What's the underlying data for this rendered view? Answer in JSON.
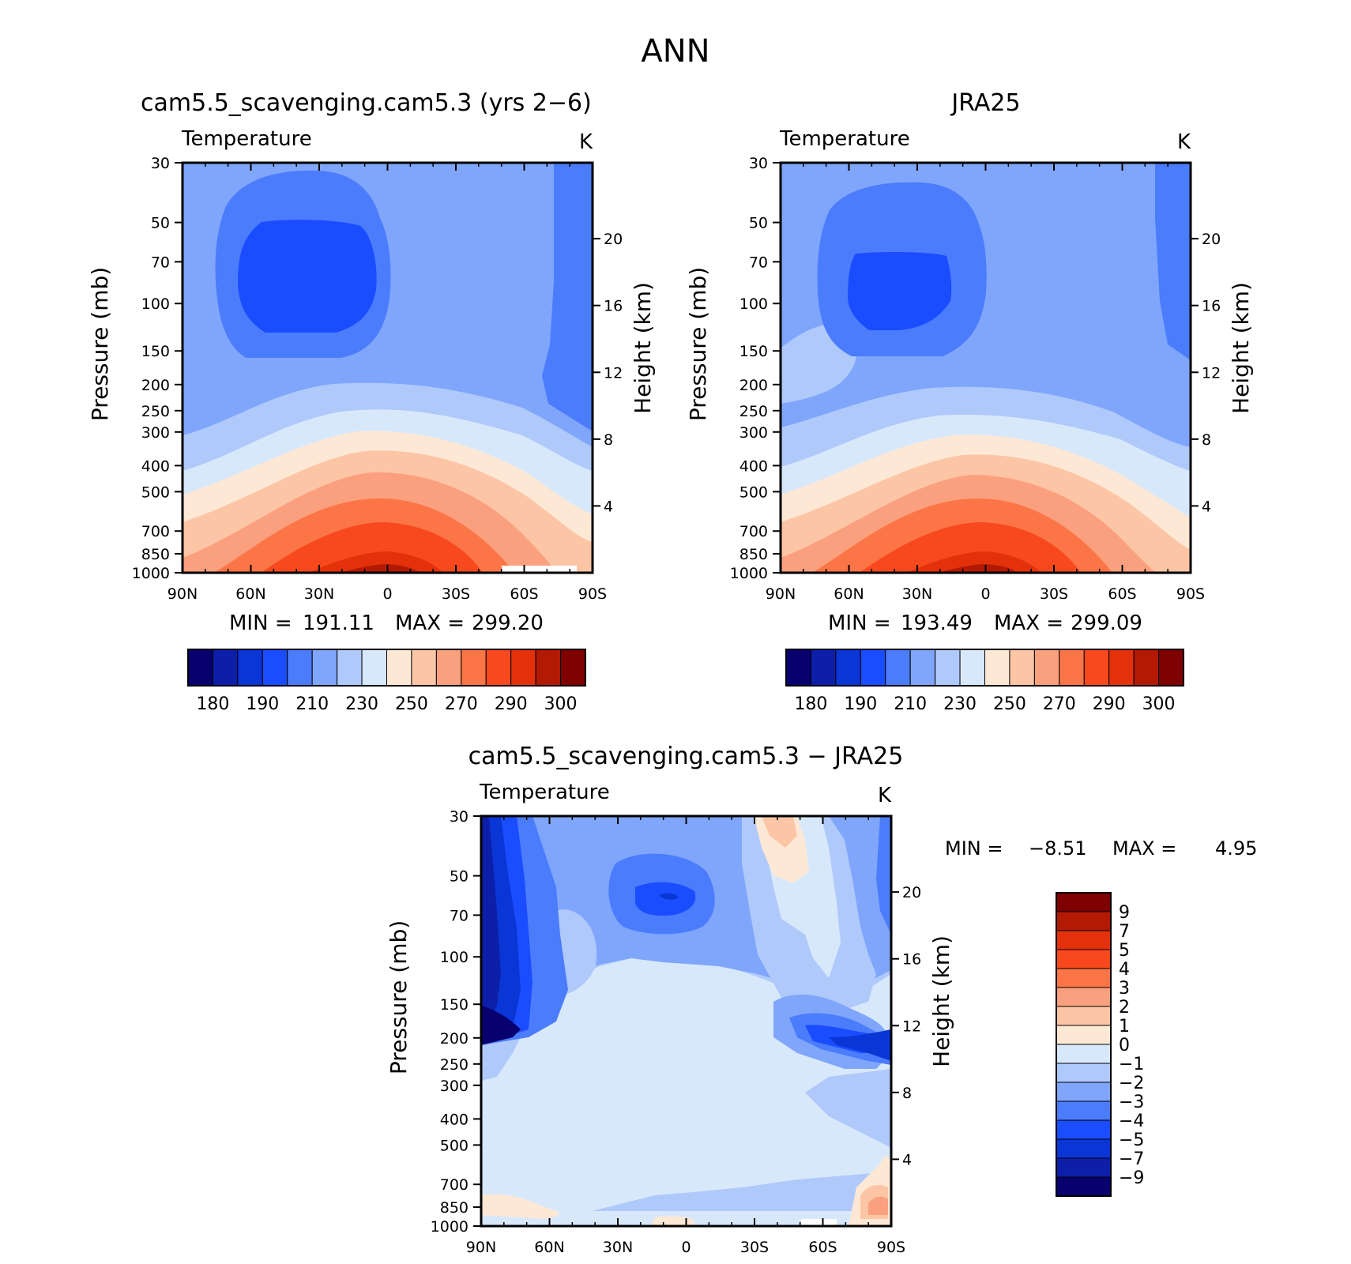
{
  "main_title": "ANN",
  "unit": "K",
  "variable": "Temperature",
  "panels": [
    {
      "id": "model",
      "title": "cam5.5_scavenging.cam5.3 (yrs 2−6)",
      "stats": {
        "min_label": "MIN =",
        "min": "191.11",
        "max_label": "MAX =",
        "max": "299.20"
      }
    },
    {
      "id": "obs",
      "title": "JRA25",
      "stats": {
        "min_label": "MIN =",
        "min": "193.49",
        "max_label": "MAX =",
        "max": "299.09"
      }
    },
    {
      "id": "diff",
      "title": "cam5.5_scavenging.cam5.3 − JRA25",
      "stats": {
        "min_label": "MIN =",
        "min": "−8.51",
        "max_label": "MAX =",
        "max": "4.95"
      }
    }
  ],
  "chart_data": {
    "type": "heatmap",
    "xlabel": "",
    "ylabel": "Pressure (mb)",
    "y2label": "Height (km)",
    "x_ticks": [
      "90N",
      "60N",
      "30N",
      "0",
      "30S",
      "60S",
      "90S"
    ],
    "x_range": [
      90,
      -90
    ],
    "y_ticks": [
      30,
      50,
      70,
      100,
      150,
      200,
      250,
      300,
      400,
      500,
      700,
      850,
      1000
    ],
    "y_range": [
      30,
      1000
    ],
    "y_scale": "log",
    "y2_ticks": [
      4,
      8,
      12,
      16,
      20
    ],
    "abs_colorbar": {
      "labels": [
        "180",
        "190",
        "210",
        "230",
        "250",
        "270",
        "290",
        "300"
      ],
      "colors": [
        "#08006f",
        "#0d1fa8",
        "#0a36d6",
        "#1a4dff",
        "#4b7cfb",
        "#7fa6fb",
        "#b0c9fb",
        "#d8e8fb",
        "#fde8d6",
        "#fcc6a6",
        "#fba07e",
        "#fb7547",
        "#f8491e",
        "#e3310c",
        "#b31a04",
        "#7e0000"
      ]
    },
    "diff_colorbar": {
      "labels": [
        "9",
        "7",
        "5",
        "4",
        "3",
        "2",
        "1",
        "0",
        "−1",
        "−2",
        "−3",
        "−4",
        "−5",
        "−7",
        "−9"
      ],
      "colors": [
        "#7e0000",
        "#b31a04",
        "#e3310c",
        "#f8491e",
        "#fb7547",
        "#fba07e",
        "#fcc6a6",
        "#fde8d6",
        "#d8e8fb",
        "#b0c9fb",
        "#7fa6fb",
        "#4b7cfb",
        "#1a4dff",
        "#0a36d6",
        "#0d1fa8",
        "#08006f"
      ]
    }
  }
}
